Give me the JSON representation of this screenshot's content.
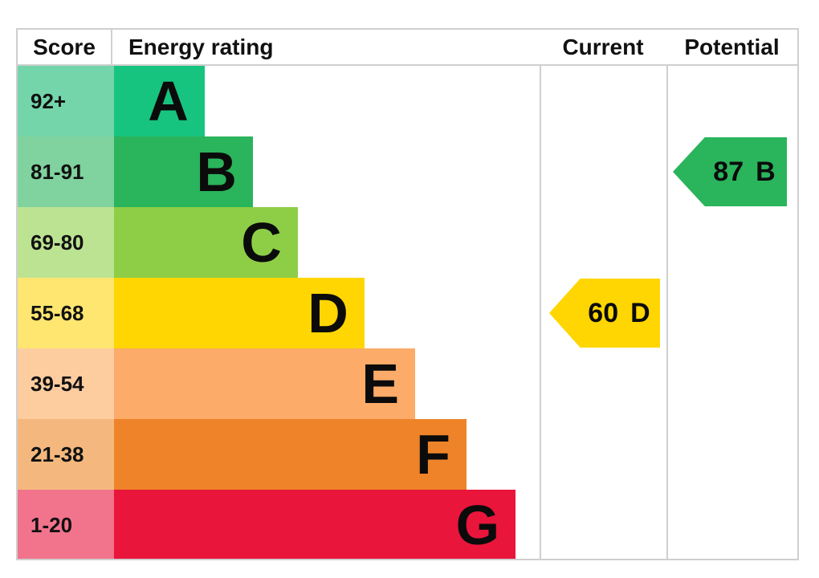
{
  "header": {
    "score": "Score",
    "energy_rating": "Energy rating",
    "current": "Current",
    "potential": "Potential"
  },
  "chart_data": {
    "type": "bar",
    "columns": [
      "Score",
      "Energy rating",
      "Current",
      "Potential"
    ],
    "bands": [
      {
        "score": "92+",
        "letter": "A",
        "color": "#17c47f",
        "pale_color": "#74d5ab",
        "width_pct": 21.2
      },
      {
        "score": "81-91",
        "letter": "B",
        "color": "#2ab45b",
        "pale_color": "#80d29e",
        "width_pct": 32.5
      },
      {
        "score": "69-80",
        "letter": "C",
        "color": "#8ece47",
        "pale_color": "#bce392",
        "width_pct": 43.0
      },
      {
        "score": "55-68",
        "letter": "D",
        "color": "#ffd602",
        "pale_color": "#ffe670",
        "width_pct": 58.6
      },
      {
        "score": "39-54",
        "letter": "E",
        "color": "#fcab68",
        "pale_color": "#fdcda0",
        "width_pct": 70.5
      },
      {
        "score": "21-38",
        "letter": "F",
        "color": "#ee8329",
        "pale_color": "#f4b87e",
        "width_pct": 82.5
      },
      {
        "score": "1-20",
        "letter": "G",
        "color": "#e9153b",
        "pale_color": "#f2738c",
        "width_pct": 94.0
      }
    ],
    "current": {
      "value": "60",
      "letter": "D",
      "band_index": 3,
      "color": "#ffd602"
    },
    "potential": {
      "value": "87",
      "letter": "B",
      "band_index": 1,
      "color": "#2ab45b"
    }
  }
}
